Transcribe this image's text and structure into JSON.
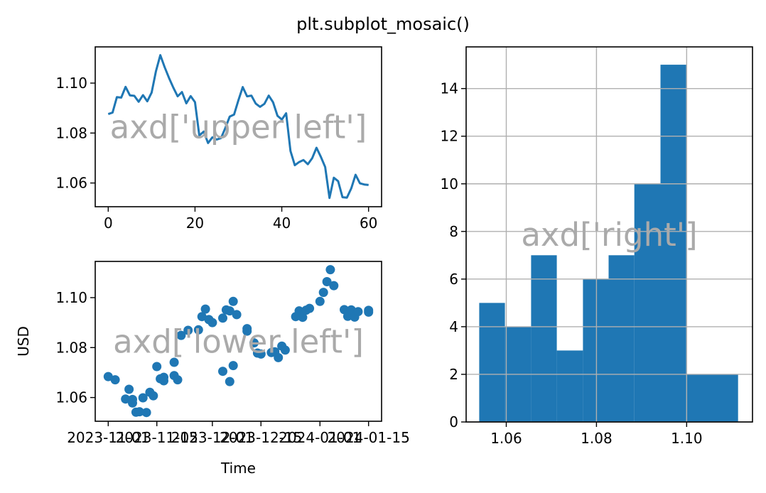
{
  "figure": {
    "suptitle": "plt.subplot_mosaic()",
    "accent_color": "#1f77b4",
    "overlay_color": "#aaaaaa",
    "grid_color": "#b0b0b0"
  },
  "chart_data": [
    {
      "type": "line",
      "panel": "upper left",
      "annotation": "axd['upper left']",
      "xlabel": "",
      "ylabel": "",
      "xlim": [
        -3,
        63
      ],
      "ylim": [
        1.0505,
        1.1145
      ],
      "xticks": [
        0,
        20,
        40,
        60
      ],
      "xtick_labels": [
        "0",
        "20",
        "40",
        "60"
      ],
      "yticks": [
        1.06,
        1.08,
        1.1
      ],
      "ytick_labels": [
        "1.06",
        "1.08",
        "1.10"
      ],
      "grid": false,
      "x": [
        0,
        1,
        2,
        3,
        4,
        5,
        6,
        7,
        8,
        9,
        10,
        11,
        12,
        13,
        14,
        15,
        16,
        17,
        18,
        19,
        20,
        21,
        22,
        23,
        24,
        25,
        26,
        27,
        28,
        29,
        30,
        31,
        32,
        33,
        34,
        35,
        36,
        37,
        38,
        39,
        40,
        41,
        42,
        43,
        44,
        45,
        46,
        47,
        48,
        49,
        50,
        51,
        52,
        53,
        54,
        55,
        56,
        57,
        58,
        59,
        60
      ],
      "y": [
        1.0876,
        1.0882,
        1.0944,
        1.0942,
        1.0985,
        1.0951,
        1.0949,
        1.0925,
        1.0952,
        1.0927,
        1.0962,
        1.1048,
        1.1112,
        1.1064,
        1.1021,
        1.0982,
        1.0947,
        1.0964,
        1.0919,
        1.0948,
        1.0924,
        1.079,
        1.0806,
        1.076,
        1.0783,
        1.0774,
        1.078,
        1.0821,
        1.0866,
        1.0874,
        1.0931,
        1.0984,
        1.0947,
        1.095,
        1.0918,
        1.0905,
        1.0917,
        1.095,
        1.0923,
        1.0869,
        1.0854,
        1.0879,
        1.0728,
        1.0671,
        1.0684,
        1.0692,
        1.0675,
        1.0699,
        1.0741,
        1.0705,
        1.0664,
        1.054,
        1.0621,
        1.0607,
        1.0543,
        1.0541,
        1.0578,
        1.0633,
        1.0599,
        1.0594,
        1.0592
      ]
    },
    {
      "type": "scatter",
      "panel": "lower left",
      "annotation": "axd['lower left']",
      "xlabel": "Time",
      "ylabel": "USD",
      "ylim": [
        1.0505,
        1.1145
      ],
      "yticks": [
        1.06,
        1.08,
        1.1
      ],
      "ytick_labels": [
        "1.06",
        "1.08",
        "1.10"
      ],
      "xtick_labels": [
        "2023-11-01",
        "2023-11-15",
        "2023-12-01",
        "2023-12-15",
        "2024-01-01",
        "2024-01-15"
      ],
      "grid": false,
      "x": [
        "2023-11-15",
        "2023-11-16",
        "2023-11-17",
        "2023-11-17",
        "2023-11-20",
        "2023-11-21",
        "2023-11-22",
        "2023-11-24",
        "2023-11-27",
        "2023-11-28",
        "2023-11-29",
        "2023-11-30",
        "2023-12-01",
        "2023-12-04",
        "2023-12-05",
        "2023-12-06",
        "2023-12-07",
        "2023-12-08",
        "2023-12-11",
        "2023-12-11",
        "2023-12-13",
        "2023-12-14",
        "2023-12-15",
        "2023-12-18",
        "2023-12-19",
        "2023-12-20",
        "2023-12-21",
        "2023-12-22",
        "2023-12-25",
        "2023-12-26",
        "2023-12-27",
        "2023-12-28",
        "2023-12-29",
        "2024-01-01",
        "2024-01-02",
        "2024-01-03",
        "2024-01-04",
        "2024-01-05",
        "2024-01-08",
        "2024-01-09",
        "2024-01-10",
        "2024-01-11",
        "2024-01-12",
        "2024-01-15",
        "2024-01-15",
        "2023-11-08",
        "2023-11-09",
        "2023-11-10",
        "2023-11-11",
        "2023-11-12",
        "2023-11-13",
        "2023-11-14",
        "2023-11-06",
        "2023-11-07",
        "2023-11-08",
        "2023-11-20",
        "2023-12-04",
        "2023-12-06",
        "2023-12-07",
        "2023-11-03",
        "2023-11-01"
      ],
      "y": [
        1.0724,
        1.0675,
        1.0667,
        1.0681,
        1.0688,
        1.0671,
        1.0849,
        1.0869,
        1.0871,
        1.0924,
        1.0954,
        1.0912,
        1.09,
        1.0918,
        1.0951,
        1.0947,
        1.0985,
        1.0932,
        1.0876,
        1.0866,
        1.0819,
        1.0778,
        1.0774,
        1.078,
        1.0783,
        1.076,
        1.0806,
        1.079,
        1.0924,
        1.0947,
        1.0921,
        1.095,
        1.0957,
        1.0985,
        1.1021,
        1.1064,
        1.1112,
        1.1048,
        1.0952,
        1.0925,
        1.0951,
        1.0922,
        1.0944,
        1.0942,
        1.0949,
        1.0578,
        1.0541,
        1.0543,
        1.0599,
        1.054,
        1.0621,
        1.0607,
        1.0594,
        1.0633,
        1.0592,
        1.0741,
        1.0705,
        1.0664,
        1.0728,
        1.0671,
        1.0684
      ]
    },
    {
      "type": "bar",
      "panel": "right",
      "annotation": "axd['right']",
      "xlabel": "",
      "ylabel": "",
      "xlim": [
        1.0511,
        1.1146
      ],
      "ylim": [
        0,
        15.75
      ],
      "xticks": [
        1.06,
        1.08,
        1.1
      ],
      "xtick_labels": [
        "1.06",
        "1.08",
        "1.10"
      ],
      "yticks": [
        0,
        2,
        4,
        6,
        8,
        10,
        12,
        14
      ],
      "ytick_labels": [
        "0",
        "2",
        "4",
        "6",
        "8",
        "10",
        "12",
        "14"
      ],
      "grid": true,
      "bin_edges": [
        1.054,
        1.0597,
        1.0655,
        1.0712,
        1.077,
        1.0827,
        1.0884,
        1.0942,
        1.0999,
        1.1057,
        1.1114
      ],
      "values": [
        5,
        4,
        7,
        3,
        6,
        7,
        10,
        15,
        2,
        2
      ]
    }
  ]
}
